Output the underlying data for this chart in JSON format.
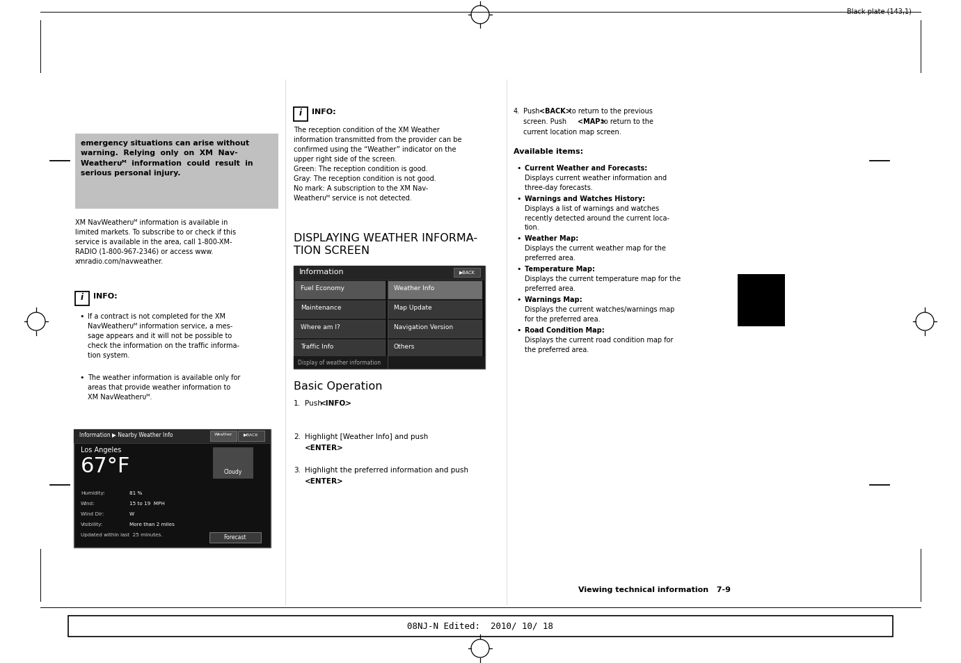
{
  "page_bg": "#ffffff",
  "top_marker_text": "Black plate (143,1)",
  "bottom_bar_text": "08NJ-N Edited:  2010/ 10/ 18",
  "footer_text": "Viewing technical information   7-9",
  "warning_box_bg": "#c0c0c0",
  "warning_text": "emergency situations can arise without\nwarning.  Relying  only  on  XM  Nav-\nWeatherᴜᴹ  information  could  result  in\nserious personal injury.",
  "col1_para1": "XM NavWeatherᴜᴹ information is available in\nlimited markets. To subscribe to or check if this\nservice is available in the area, call 1-800-XM-\nRADIO (1-800-967-2346) or access www.\nxmradio.com/navweather.",
  "col1_bullet1": "If a contract is not completed for the XM\nNavWeatherᴜᴹ information service, a mes-\nsage appears and it will not be possible to\ncheck the information on the traffic informa-\ntion system.",
  "col1_bullet2": "The weather information is available only for\nareas that provide weather information to\nXM NavWeatherᴜᴹ.",
  "col2_info_text": "The reception condition of the XM Weather\ninformation transmitted from the provider can be\nconfirmed using the “Weather” indicator on the\nupper right side of the screen.\nGreen: The reception condition is good.\nGray: The reception condition is not good.\nNo mark: A subscription to the XM Nav-\nWeatherᴜᴹ service is not detected.",
  "section_title": "DISPLAYING WEATHER INFORMA-\nTION SCREEN",
  "screen1_rows_left": [
    "Fuel Economy",
    "Maintenance",
    "Where am I?",
    "Traffic Info"
  ],
  "screen1_rows_right": [
    "Weather Info",
    "Map Update",
    "Navigation Version",
    "Others"
  ],
  "screen1_caption": "Display of weather information",
  "basic_op_title": "Basic Operation",
  "col3_avail_title": "Available items:",
  "col3_bullets": [
    [
      "Current Weather and Forecasts:",
      "Displays current weather information and\nthree-day forecasts."
    ],
    [
      "Warnings and Watches History:",
      "Displays a list of warnings and watches\nrecently detected around the current loca-\ntion."
    ],
    [
      "Weather Map:",
      "Displays the current weather map for the\npreferred area."
    ],
    [
      "Temperature Map:",
      "Displays the current temperature map for the\npreferred area."
    ],
    [
      "Warnings Map:",
      "Displays the current watches/warnings map\nfor the preferred area."
    ],
    [
      "Road Condition Map:",
      "Displays the current road condition map for\nthe preferred area."
    ]
  ],
  "screen2_details": [
    [
      "Humidity:",
      "81 %"
    ],
    [
      "Wind:",
      "15 to 19  MPH"
    ],
    [
      "Wind Dir:",
      "W"
    ],
    [
      "Visibility:",
      "More than 2 miles"
    ],
    [
      "Updated within last  25 minutes.",
      ""
    ]
  ]
}
